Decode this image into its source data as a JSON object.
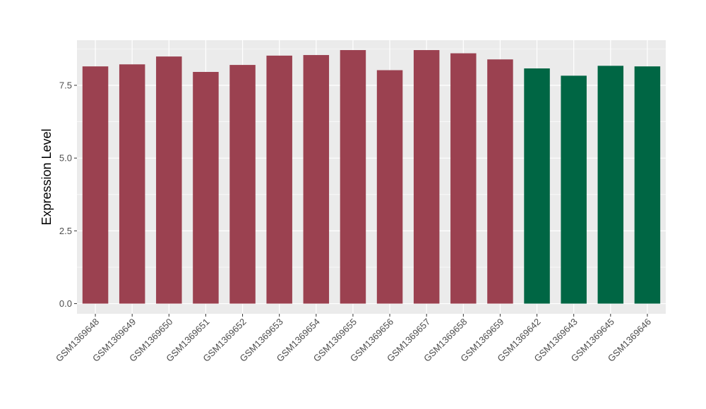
{
  "chart_data": {
    "type": "bar",
    "title": "",
    "xlabel": "",
    "ylabel": "Expression Level",
    "ylim": [
      -0.35,
      9.05
    ],
    "yticks": [
      0.0,
      2.5,
      5.0,
      7.5
    ],
    "ytick_labels": [
      "0.0",
      "2.5",
      "5.0",
      "7.5"
    ],
    "grid": true,
    "legend": "none",
    "categories": [
      "GSM1369648",
      "GSM1369649",
      "GSM1369650",
      "GSM1369651",
      "GSM1369652",
      "GSM1369653",
      "GSM1369654",
      "GSM1369655",
      "GSM1369656",
      "GSM1369657",
      "GSM1369658",
      "GSM1369659",
      "GSM1369642",
      "GSM1369643",
      "GSM1369645",
      "GSM1369646"
    ],
    "values": [
      8.15,
      8.22,
      8.49,
      7.96,
      8.2,
      8.52,
      8.54,
      8.71,
      8.02,
      8.71,
      8.6,
      8.39,
      8.08,
      7.83,
      8.17,
      8.15
    ],
    "bar_colors": [
      "#9b4150",
      "#9b4150",
      "#9b4150",
      "#9b4150",
      "#9b4150",
      "#9b4150",
      "#9b4150",
      "#9b4150",
      "#9b4150",
      "#9b4150",
      "#9b4150",
      "#9b4150",
      "#006644",
      "#006644",
      "#006644",
      "#006644"
    ],
    "panel_background": "#ebebeb",
    "gridline_color": "#ffffff"
  }
}
